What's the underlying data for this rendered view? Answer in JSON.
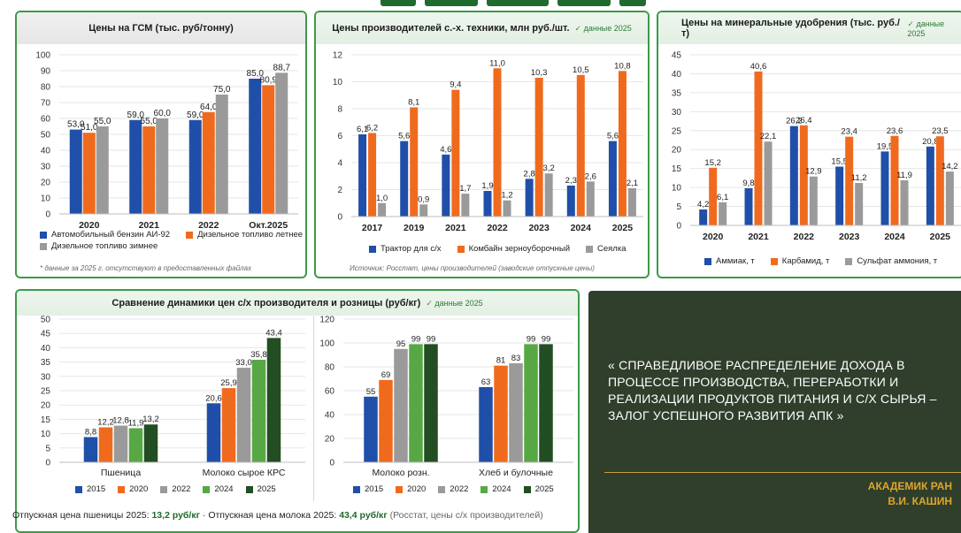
{
  "colors": {
    "blue": "#1f4fa8",
    "orange": "#f06a1e",
    "gray": "#9a9a9a",
    "green": "#57a845",
    "darkgreen": "#234d22",
    "quote_bg": "#2f3f2c",
    "author": "#e0a62b"
  },
  "panels": {
    "fuel": {
      "title": "Цены на ГСМ (тыс. руб/тонну)",
      "note": "* данные за 2025 г. отсутствуют в предоставленных файлах"
    },
    "machinery": {
      "title": "Цены производителей с.-х. техники, млн руб./шт.",
      "badge": "данные 2025",
      "note": "Источник: Росстат, цены производителей (заводские отпускные цены)"
    },
    "fertilizer": {
      "title": "Цены на минеральные удобрения (тыс. руб./т)",
      "badge": "данные 2025"
    },
    "compare": {
      "title": "Сравнение динамики цен с/х производителя и розницы (руб/кг)",
      "badge": "данные 2025"
    }
  },
  "bottom_line": {
    "part1": "Отпускная цена пшеницы 2025:",
    "value1": "13,2 руб/кг",
    "sep": "·",
    "part2": "Отпускная цена молока 2025:",
    "value2": "43,4 руб/кг",
    "source": "(Росстат, цены с/х производителей)"
  },
  "quote": {
    "text": "« СПРАВЕДЛИВОЕ РАСПРЕДЕЛЕНИЕ ДОХОДА В ПРОЦЕССЕ ПРОИЗВОДСТВА, ПЕРЕРАБОТКИ И РЕАЛИЗАЦИИ ПРОДУКТОВ ПИТАНИЯ И С/Х СЫРЬЯ – ЗАЛОГ УСПЕШНОГО РАЗВИТИЯ АПК »",
    "author_line1": "АКАДЕМИК РАН",
    "author_line2": "В.И. КАШИН"
  },
  "chart_data": [
    {
      "id": "fuel",
      "type": "bar",
      "categories": [
        "2020",
        "2021",
        "2022",
        "Окт.2025"
      ],
      "series": [
        {
          "name": "Автомобильный бензин АИ-92",
          "color": "#1f4fa8",
          "values": [
            53.0,
            59.0,
            59.0,
            85.0
          ]
        },
        {
          "name": "Дизельное топливо летнее",
          "color": "#f06a1e",
          "values": [
            51.0,
            55.0,
            64.0,
            80.9
          ]
        },
        {
          "name": "Дизельное топливо зимнее",
          "color": "#9a9a9a",
          "values": [
            55.0,
            60.0,
            75.0,
            88.7
          ]
        }
      ],
      "ylim": [
        0,
        100
      ],
      "yticks": [
        0,
        10,
        20,
        30,
        40,
        50,
        60,
        70,
        80,
        90,
        100
      ],
      "legend": "bottom"
    },
    {
      "id": "machinery",
      "type": "bar",
      "categories": [
        "2017",
        "2019",
        "2021",
        "2022",
        "2023",
        "2024",
        "2025"
      ],
      "series": [
        {
          "name": "Трактор для с/х",
          "color": "#1f4fa8",
          "values": [
            6.1,
            5.6,
            4.6,
            1.9,
            2.8,
            2.3,
            5.6
          ]
        },
        {
          "name": "Комбайн зерноуборочный",
          "color": "#f06a1e",
          "values": [
            6.2,
            8.1,
            9.4,
            11.0,
            10.3,
            10.5,
            10.8
          ]
        },
        {
          "name": "Сеялка",
          "color": "#9a9a9a",
          "values": [
            1.0,
            0.9,
            1.7,
            1.2,
            3.2,
            2.6,
            2.1
          ]
        }
      ],
      "ylim": [
        0,
        12
      ],
      "yticks": [
        0,
        2,
        4,
        6,
        8,
        10,
        12
      ],
      "legend": "bottom"
    },
    {
      "id": "fertilizer",
      "type": "bar",
      "categories": [
        "2020",
        "2021",
        "2022",
        "2023",
        "2024",
        "2025"
      ],
      "series": [
        {
          "name": "Аммиак, т",
          "color": "#1f4fa8",
          "values": [
            4.2,
            9.8,
            26.2,
            15.5,
            19.5,
            20.8
          ]
        },
        {
          "name": "Карбамид, т",
          "color": "#f06a1e",
          "values": [
            15.2,
            40.6,
            26.4,
            23.4,
            23.6,
            23.5
          ]
        },
        {
          "name": "Сульфат аммония, т",
          "color": "#9a9a9a",
          "values": [
            6.1,
            22.1,
            12.9,
            11.2,
            11.9,
            14.2
          ]
        }
      ],
      "ylim": [
        0,
        45
      ],
      "yticks": [
        0,
        5,
        10,
        15,
        20,
        25,
        30,
        35,
        40,
        45
      ],
      "legend": "bottom"
    },
    {
      "id": "producer",
      "type": "bar",
      "categories": [
        "Пшеница",
        "Молоко сырое КРС"
      ],
      "series": [
        {
          "name": "2015",
          "color": "#1f4fa8",
          "values": [
            8.8,
            20.6
          ]
        },
        {
          "name": "2020",
          "color": "#f06a1e",
          "values": [
            12.2,
            25.9
          ]
        },
        {
          "name": "2022",
          "color": "#9a9a9a",
          "values": [
            12.8,
            33.0
          ]
        },
        {
          "name": "2024",
          "color": "#57a845",
          "values": [
            11.9,
            35.8
          ]
        },
        {
          "name": "2025",
          "color": "#234d22",
          "values": [
            13.2,
            43.4
          ]
        }
      ],
      "ylim": [
        0,
        50
      ],
      "yticks": [
        0,
        5,
        10,
        15,
        20,
        25,
        30,
        35,
        40,
        45,
        50
      ],
      "legend": "bottom"
    },
    {
      "id": "retail",
      "type": "bar",
      "categories": [
        "Молоко розн.",
        "Хлеб и булочные"
      ],
      "series": [
        {
          "name": "2015",
          "color": "#1f4fa8",
          "values": [
            55,
            63
          ]
        },
        {
          "name": "2020",
          "color": "#f06a1e",
          "values": [
            69,
            81
          ]
        },
        {
          "name": "2022",
          "color": "#9a9a9a",
          "values": [
            95,
            83
          ]
        },
        {
          "name": "2024",
          "color": "#57a845",
          "values": [
            99,
            99
          ]
        },
        {
          "name": "2025",
          "color": "#234d22",
          "values": [
            99,
            99
          ]
        }
      ],
      "ylim": [
        0,
        120
      ],
      "yticks": [
        0,
        20,
        40,
        60,
        80,
        100,
        120
      ],
      "legend": "bottom"
    }
  ]
}
